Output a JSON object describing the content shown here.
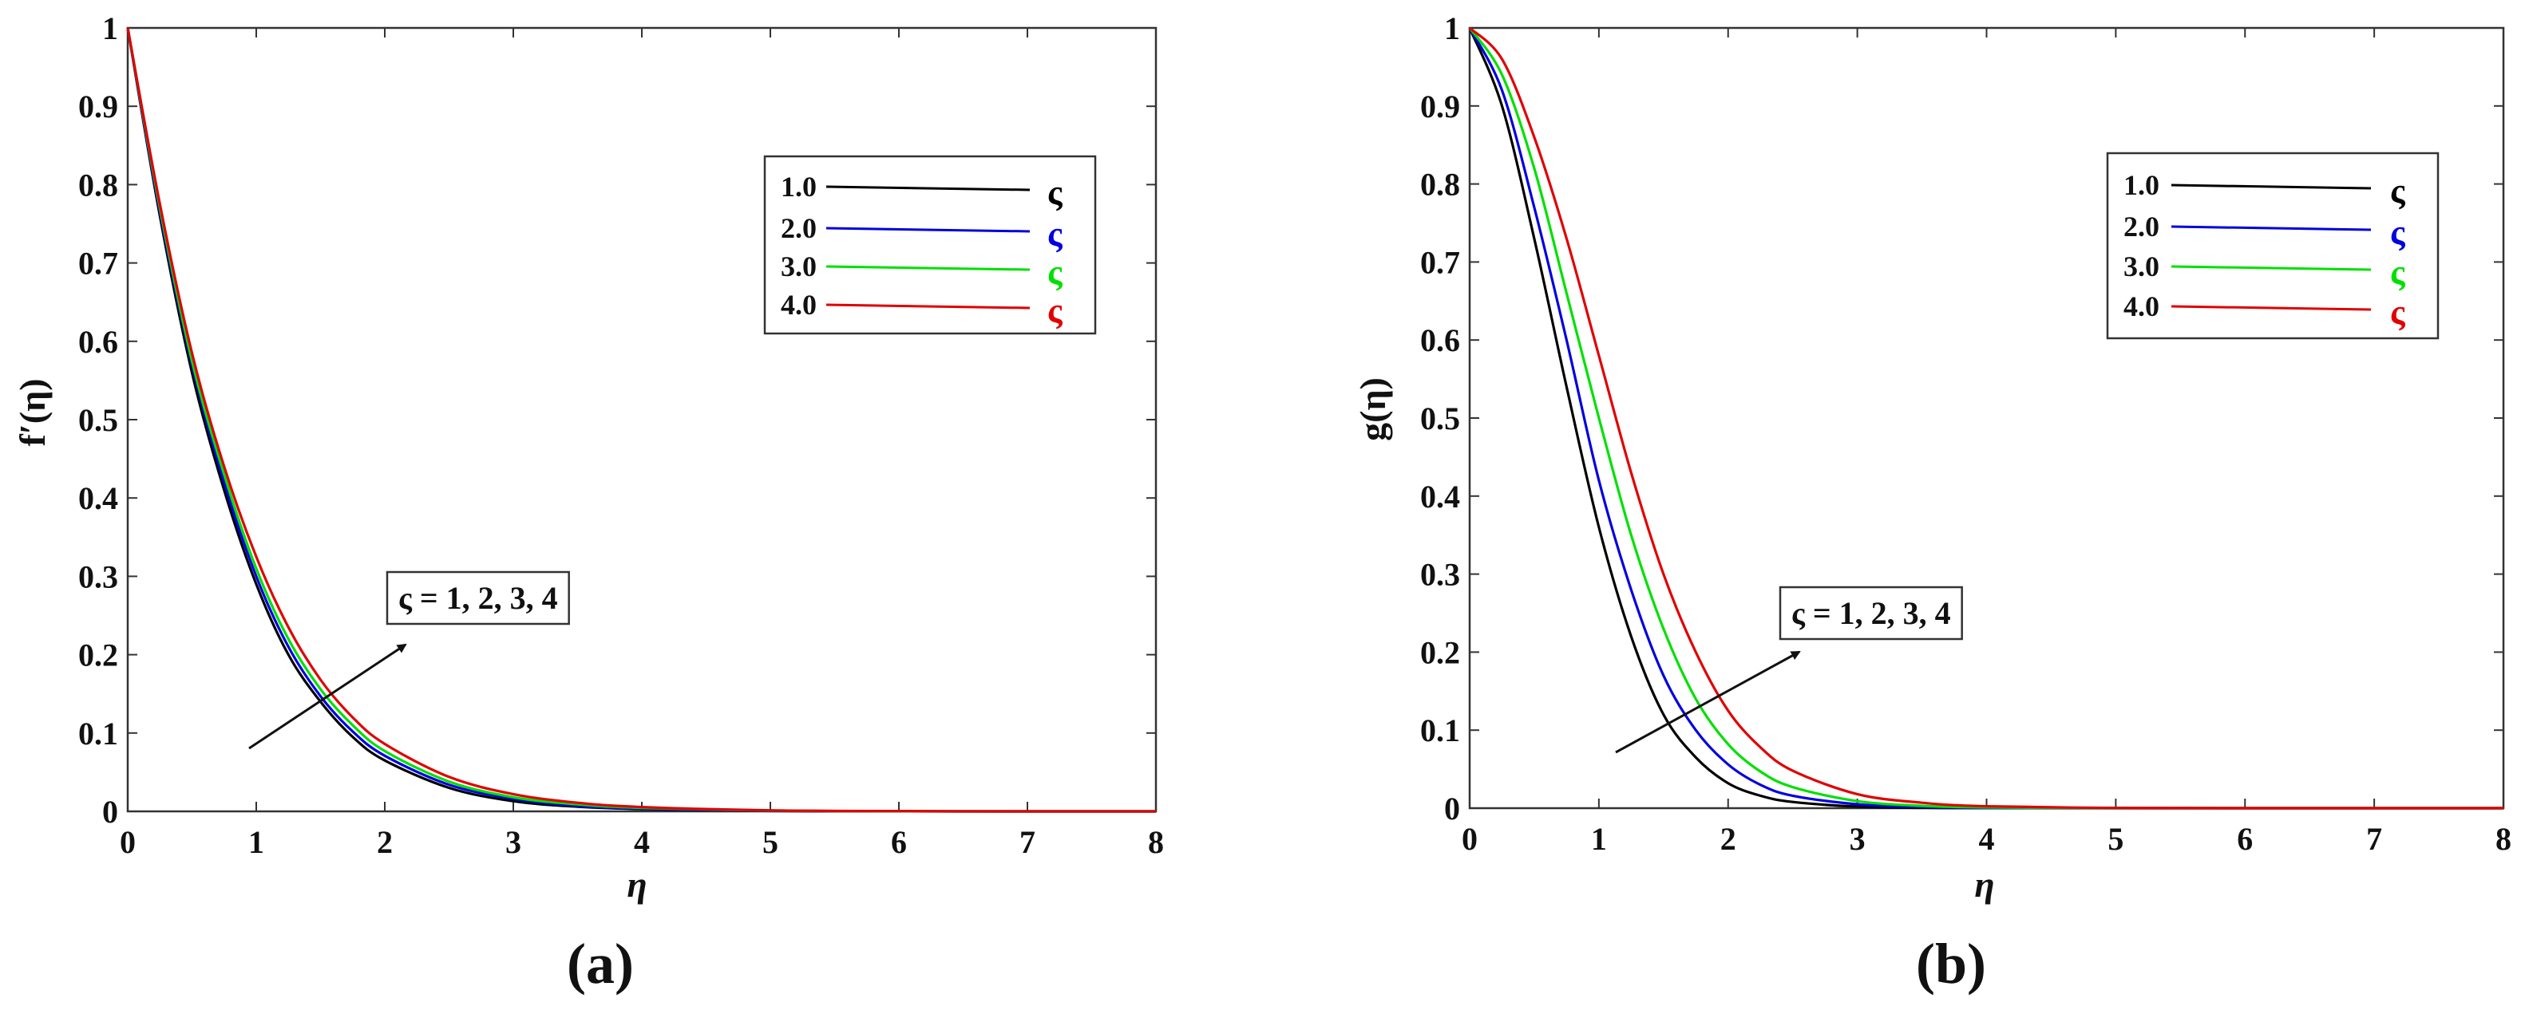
{
  "chart_data": [
    {
      "type": "line",
      "panel_label": "(a)",
      "xlabel": "η",
      "ylabel": "f′(η)",
      "xlim": [
        0,
        8
      ],
      "ylim": [
        0,
        1
      ],
      "xticks": [
        "0",
        "1",
        "2",
        "3",
        "4",
        "5",
        "6",
        "7",
        "8"
      ],
      "yticks": [
        "0",
        "0.1",
        "0.2",
        "0.3",
        "0.4",
        "0.5",
        "0.6",
        "0.7",
        "0.8",
        "0.9",
        "1"
      ],
      "legend_placement": "top-right",
      "annotation": "ς = 1, 2, 3, 4",
      "x": [
        0,
        0.25,
        0.5,
        0.75,
        1,
        1.25,
        1.5,
        1.75,
        2,
        2.5,
        3,
        3.5,
        4,
        5,
        6,
        7,
        8
      ],
      "series": [
        {
          "name": "1.0",
          "symbol": "ς",
          "color": "#000000",
          "values": [
            1.0,
            0.76,
            0.56,
            0.41,
            0.29,
            0.2,
            0.14,
            0.095,
            0.065,
            0.03,
            0.013,
            0.006,
            0.003,
            0.0005,
            0.0001,
            0.0,
            0.0
          ]
        },
        {
          "name": "2.0",
          "symbol": "ς",
          "color": "#0000e0",
          "values": [
            1.0,
            0.765,
            0.57,
            0.42,
            0.3,
            0.21,
            0.147,
            0.102,
            0.071,
            0.034,
            0.016,
            0.007,
            0.0035,
            0.0007,
            0.0001,
            0.0,
            0.0
          ]
        },
        {
          "name": "3.0",
          "symbol": "ς",
          "color": "#00e000",
          "values": [
            1.0,
            0.77,
            0.575,
            0.43,
            0.31,
            0.22,
            0.156,
            0.11,
            0.077,
            0.038,
            0.018,
            0.009,
            0.0045,
            0.001,
            0.0002,
            0.0,
            0.0
          ]
        },
        {
          "name": "4.0",
          "symbol": "ς",
          "color": "#e00000",
          "values": [
            1.0,
            0.775,
            0.585,
            0.44,
            0.325,
            0.235,
            0.168,
            0.12,
            0.086,
            0.044,
            0.022,
            0.011,
            0.0055,
            0.0013,
            0.0003,
            0.0,
            0.0
          ]
        }
      ]
    },
    {
      "type": "line",
      "panel_label": "(b)",
      "xlabel": "η",
      "ylabel": "g(η)",
      "xlim": [
        0,
        8
      ],
      "ylim": [
        0,
        1
      ],
      "xticks": [
        "0",
        "1",
        "2",
        "3",
        "4",
        "5",
        "6",
        "7",
        "8"
      ],
      "yticks": [
        "0",
        "0.1",
        "0.2",
        "0.3",
        "0.4",
        "0.5",
        "0.6",
        "0.7",
        "0.8",
        "0.9",
        "1"
      ],
      "legend_placement": "top-right",
      "annotation": "ς = 1, 2, 3, 4",
      "x": [
        0,
        0.25,
        0.5,
        0.75,
        1,
        1.25,
        1.5,
        1.75,
        2,
        2.25,
        2.5,
        3,
        3.5,
        4,
        5,
        6,
        7,
        8
      ],
      "series": [
        {
          "name": "1.0",
          "symbol": "ς",
          "color": "#000000",
          "values": [
            1.0,
            0.9,
            0.73,
            0.54,
            0.36,
            0.22,
            0.12,
            0.065,
            0.032,
            0.016,
            0.008,
            0.002,
            0.0005,
            0.0001,
            0.0,
            0.0,
            0.0,
            0.0
          ]
        },
        {
          "name": "2.0",
          "symbol": "ς",
          "color": "#0000e0",
          "values": [
            1.0,
            0.92,
            0.77,
            0.6,
            0.42,
            0.28,
            0.17,
            0.1,
            0.056,
            0.03,
            0.016,
            0.005,
            0.0015,
            0.0004,
            0.0,
            0.0,
            0.0,
            0.0
          ]
        },
        {
          "name": "3.0",
          "symbol": "ς",
          "color": "#00e000",
          "values": [
            1.0,
            0.94,
            0.82,
            0.66,
            0.5,
            0.35,
            0.23,
            0.14,
            0.082,
            0.047,
            0.027,
            0.009,
            0.003,
            0.001,
            0.0001,
            0.0,
            0.0,
            0.0
          ]
        },
        {
          "name": "4.0",
          "symbol": "ς",
          "color": "#e00000",
          "values": [
            1.0,
            0.96,
            0.86,
            0.73,
            0.58,
            0.43,
            0.3,
            0.2,
            0.125,
            0.078,
            0.048,
            0.018,
            0.007,
            0.0025,
            0.0003,
            0.0,
            0.0,
            0.0
          ]
        }
      ]
    }
  ]
}
